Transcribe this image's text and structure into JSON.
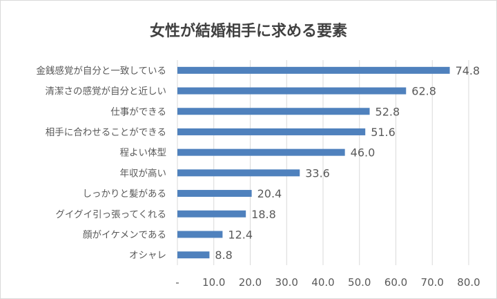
{
  "chart_data": {
    "type": "bar",
    "orientation": "horizontal",
    "title": "女性が結婚相手に求める要素",
    "categories": [
      "金銭感覚が自分と一致している",
      "清潔さの感覚が自分と近しい",
      "仕事ができる",
      "相手に合わせることができる",
      "程よい体型",
      "年収が高い",
      "しっかりと髪がある",
      "グイグイ引っ張ってくれる",
      "顔がイケメンである",
      "オシャレ"
    ],
    "values": [
      74.8,
      62.8,
      52.8,
      51.6,
      46.0,
      33.6,
      20.4,
      18.8,
      12.4,
      8.8
    ],
    "data_labels": [
      "74.8",
      "62.8",
      "52.8",
      "51.6",
      "46.0",
      "33.6",
      "20.4",
      "18.8",
      "12.4",
      "8.8"
    ],
    "xlim": [
      0,
      80
    ],
    "x_ticks": [
      0,
      10,
      20,
      30,
      40,
      50,
      60,
      70,
      80
    ],
    "x_tick_labels": [
      "-",
      "10.0",
      "20.0",
      "30.0",
      "40.0",
      "50.0",
      "60.0",
      "70.0",
      "80.0"
    ],
    "grid": "vertical",
    "legend": "none",
    "colors": {
      "bar": "#4f81bd",
      "text": "#595959",
      "title": "#404040",
      "grid": "#d9d9d9"
    }
  }
}
